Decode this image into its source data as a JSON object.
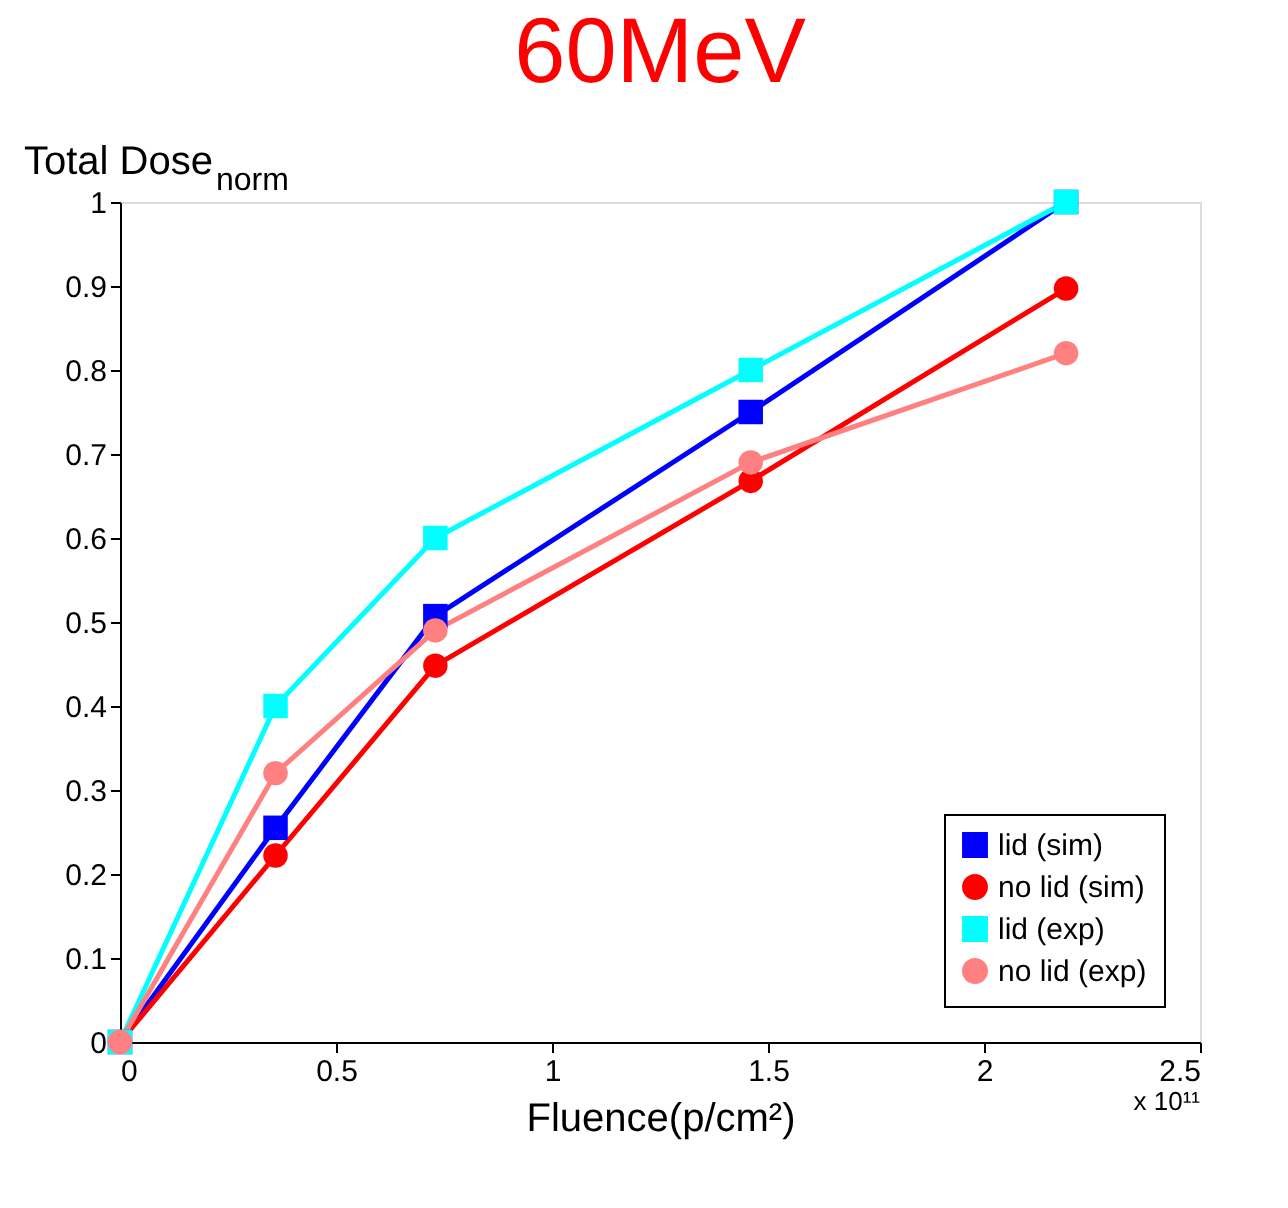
{
  "chart_data": {
    "type": "line",
    "title": "60MeV",
    "xlabel": "Fluence(p/cm²)",
    "ylabel": "Total Dose$_{norm}$",
    "x": [
      0,
      0.36,
      0.73,
      1.46,
      2.19
    ],
    "series": [
      {
        "name": "lid (sim)",
        "color": "#0000ff",
        "marker": "square",
        "values": [
          0,
          0.255,
          0.507,
          0.75,
          1.0
        ]
      },
      {
        "name": "no lid (sim)",
        "color": "#ff0000",
        "marker": "circle",
        "values": [
          0,
          0.222,
          0.448,
          0.668,
          0.897
        ]
      },
      {
        "name": "lid (exp)",
        "color": "#00ffff",
        "marker": "square",
        "values": [
          0,
          0.4,
          0.6,
          0.8,
          1.0
        ]
      },
      {
        "name": "no lid (exp)",
        "color": "#ff8080",
        "marker": "circle",
        "values": [
          0,
          0.32,
          0.49,
          0.69,
          0.82
        ]
      }
    ],
    "xlim": [
      0,
      2.5
    ],
    "xticks": [
      0,
      0.5,
      1,
      1.5,
      2,
      2.5
    ],
    "ylim": [
      0,
      1
    ],
    "yticks": [
      0,
      0.1,
      0.2,
      0.3,
      0.4,
      0.5,
      0.6,
      0.7,
      0.8,
      0.9,
      1
    ],
    "annotations": [
      "x 10¹¹"
    ],
    "legend": "bottom right",
    "grid": false,
    "line_style": "solid"
  }
}
